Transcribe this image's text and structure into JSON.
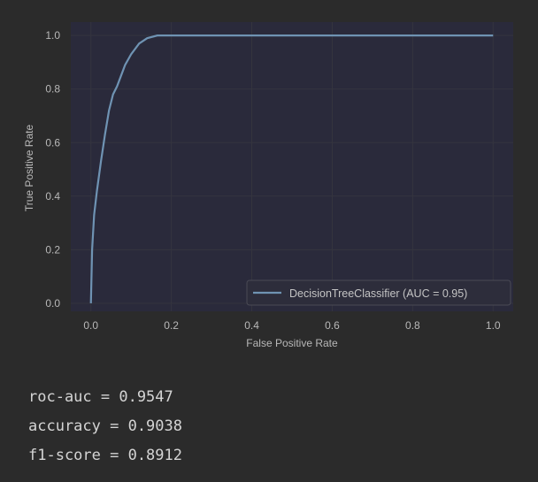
{
  "chart_data": {
    "type": "line",
    "xlabel": "False Positive Rate",
    "ylabel": "True Positive Rate",
    "xlim": [
      -0.05,
      1.05
    ],
    "ylim": [
      -0.03,
      1.05
    ],
    "xticks": [
      "0.0",
      "0.2",
      "0.4",
      "0.6",
      "0.8",
      "1.0"
    ],
    "yticks": [
      "0.0",
      "0.2",
      "0.4",
      "0.6",
      "0.8",
      "1.0"
    ],
    "grid": true,
    "legend_position": "lower-right",
    "series": [
      {
        "name": "DecisionTreeClassifier (AUC = 0.95)",
        "color": "#6f93b3",
        "x": [
          0.0,
          0.003,
          0.008,
          0.015,
          0.025,
          0.035,
          0.045,
          0.055,
          0.065,
          0.075,
          0.085,
          0.1,
          0.12,
          0.14,
          0.165,
          1.0
        ],
        "y": [
          0.0,
          0.2,
          0.33,
          0.42,
          0.53,
          0.63,
          0.72,
          0.78,
          0.81,
          0.85,
          0.89,
          0.93,
          0.97,
          0.99,
          1.0,
          1.0
        ]
      }
    ]
  },
  "metrics": [
    "roc-auc = 0.9547",
    "accuracy = 0.9038",
    "f1-score = 0.8912"
  ],
  "colors": {
    "background": "#2b2b2b",
    "plot_area": "#2a2a3b",
    "grid": "#35353f",
    "tick_text": "#b8b8b8",
    "legend_bg": "#2d2d3b",
    "legend_border": "#4a4a55"
  }
}
